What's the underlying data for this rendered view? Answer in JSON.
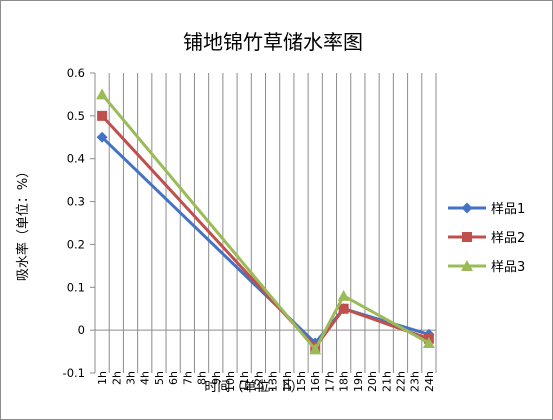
{
  "chart_data": {
    "type": "line",
    "title": "铺地锦竹草储水率图",
    "xlabel": "时间（单位：h）",
    "ylabel": "吸水率（单位：%）",
    "ylim": [
      -0.1,
      0.6
    ],
    "yticks": [
      "-0.1",
      "0",
      "0.1",
      "0.2",
      "0.3",
      "0.4",
      "0.5",
      "0.6"
    ],
    "grid": "vertical-category",
    "legend": "right",
    "categories": [
      "1h",
      "2h",
      "3h",
      "4h",
      "5h",
      "6h",
      "7h",
      "8h",
      "9h",
      "10h",
      "11h",
      "12h",
      "13h",
      "14h",
      "15h",
      "16h",
      "17h",
      "18h",
      "19h",
      "20h",
      "21h",
      "22h",
      "23h",
      "24h"
    ],
    "visible_tick_labels": [
      "1h",
      "2h",
      "3h",
      "4h",
      "5h",
      "6h",
      "7h",
      "8h",
      "9h",
      "10h",
      "11h",
      "12h",
      "13h",
      "14h",
      "15h",
      "16h",
      "17h",
      "18h",
      "19h",
      "20h",
      "21h",
      "22h",
      "23h",
      "24h"
    ],
    "series": [
      {
        "name": "样品1",
        "color": "#4472C4",
        "marker": "diamond",
        "points": [
          [
            "1h",
            0.45
          ],
          [
            "16h",
            -0.03
          ],
          [
            "18h",
            0.05
          ],
          [
            "24h",
            -0.01
          ]
        ]
      },
      {
        "name": "样品2",
        "color": "#C0504D",
        "marker": "square",
        "points": [
          [
            "1h",
            0.5
          ],
          [
            "16h",
            -0.04
          ],
          [
            "18h",
            0.05
          ],
          [
            "24h",
            -0.02
          ]
        ]
      },
      {
        "name": "样品3",
        "color": "#9BBB59",
        "marker": "triangle",
        "points": [
          [
            "1h",
            0.55
          ],
          [
            "16h",
            -0.045
          ],
          [
            "18h",
            0.08
          ],
          [
            "24h",
            -0.03
          ]
        ]
      }
    ]
  }
}
